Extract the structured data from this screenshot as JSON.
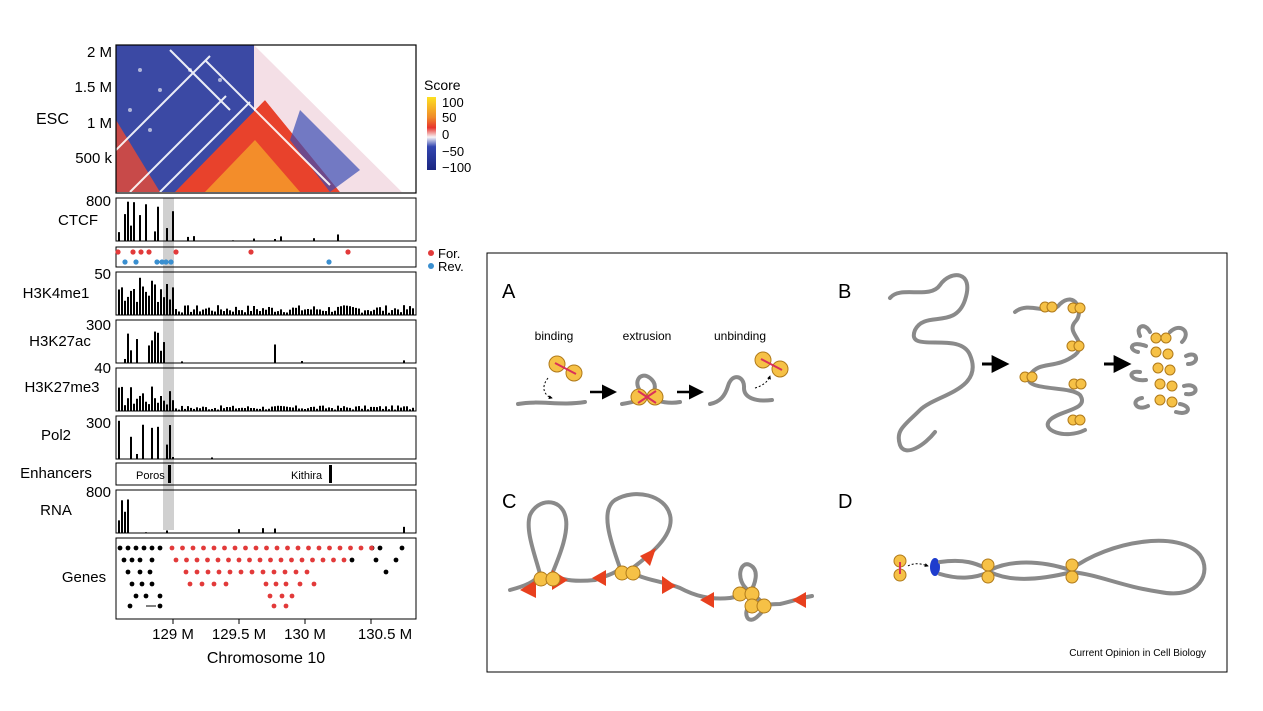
{
  "left_figure": {
    "heatmap": {
      "ylabel": "ESC",
      "yticks": [
        "2 M",
        "1.5 M",
        "1 M",
        "500 k"
      ],
      "legend_title": "Score",
      "legend_ticks": [
        "100",
        "50",
        "0",
        "−50",
        "−100"
      ],
      "legend_colors": [
        "#fde021",
        "#ef4a2c",
        "#f5f2f5",
        "#2b3aa1",
        "#1a2680"
      ]
    },
    "tracks": [
      {
        "label": "CTCF",
        "max": "800"
      },
      {
        "label": "",
        "max": ""
      },
      {
        "label": "H3K4me1",
        "max": "50"
      },
      {
        "label": "H3K27ac",
        "max": "300"
      },
      {
        "label": "H3K27me3",
        "max": "40"
      },
      {
        "label": "Pol2",
        "max": "300"
      },
      {
        "label": "Enhancers",
        "max": ""
      },
      {
        "label": "RNA",
        "max": "800"
      }
    ],
    "orientation_legend": {
      "forward": "For.",
      "reverse": "Rev.",
      "forward_color": "#e23a3a",
      "reverse_color": "#3a8fd0"
    },
    "enhancers": [
      "Poros",
      "Kithira"
    ],
    "genes_label": "Genes",
    "xticks": [
      "129 M",
      "129.5 M",
      "130 M",
      "130.5 M"
    ],
    "xlabel": "Chromosome 10"
  },
  "right_figure": {
    "panels": [
      {
        "letter": "A",
        "steps": [
          "binding",
          "extrusion",
          "unbinding"
        ]
      },
      {
        "letter": "B"
      },
      {
        "letter": "C"
      },
      {
        "letter": "D"
      }
    ],
    "credit": "Current Opinion in Cell Biology"
  }
}
